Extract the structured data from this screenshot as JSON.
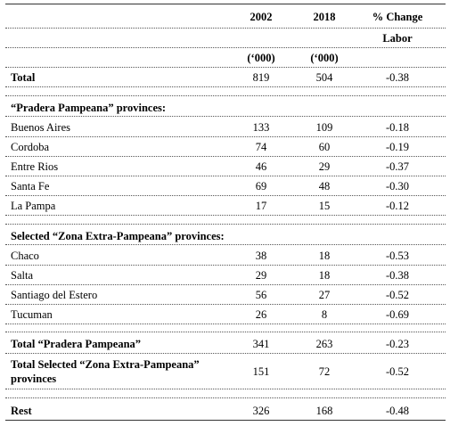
{
  "header": {
    "col_2002": "2002",
    "col_2018": "2018",
    "col_change_line1": "% Change",
    "col_change_line2": "Labor",
    "unit_2002": "(‘000)",
    "unit_2018": "(‘000)"
  },
  "total": {
    "label": "Total",
    "v2002": "819",
    "v2018": "504",
    "change": "-0.38"
  },
  "pradera_heading": "“Pradera Pampeana” provinces:",
  "pradera_rows": [
    {
      "label": "Buenos Aires",
      "v2002": "133",
      "v2018": "109",
      "change": "-0.18"
    },
    {
      "label": "Cordoba",
      "v2002": "74",
      "v2018": "60",
      "change": "-0.19"
    },
    {
      "label": "Entre Rios",
      "v2002": "46",
      "v2018": "29",
      "change": "-0.37"
    },
    {
      "label": "Santa Fe",
      "v2002": "69",
      "v2018": "48",
      "change": "-0.30"
    },
    {
      "label": "La Pampa",
      "v2002": "17",
      "v2018": "15",
      "change": "-0.12"
    }
  ],
  "zona_heading": "Selected “Zona Extra-Pampeana” provinces:",
  "zona_rows": [
    {
      "label": "Chaco",
      "v2002": "38",
      "v2018": "18",
      "change": "-0.53"
    },
    {
      "label": "Salta",
      "v2002": "29",
      "v2018": "18",
      "change": "-0.38"
    },
    {
      "label": "Santiago del Estero",
      "v2002": "56",
      "v2018": "27",
      "change": "-0.52"
    },
    {
      "label": "Tucuman",
      "v2002": "26",
      "v2018": "8",
      "change": "-0.69"
    }
  ],
  "total_pradera": {
    "label": "Total “Pradera Pampeana”",
    "v2002": "341",
    "v2018": "263",
    "change": "-0.23"
  },
  "total_zona": {
    "label_line1": "Total Selected “Zona Extra-Pampeana”",
    "label_line2": "provinces",
    "v2002": "151",
    "v2018": "72",
    "change": "-0.52"
  },
  "rest": {
    "label": "Rest",
    "v2002": "326",
    "v2018": "168",
    "change": "-0.48"
  }
}
